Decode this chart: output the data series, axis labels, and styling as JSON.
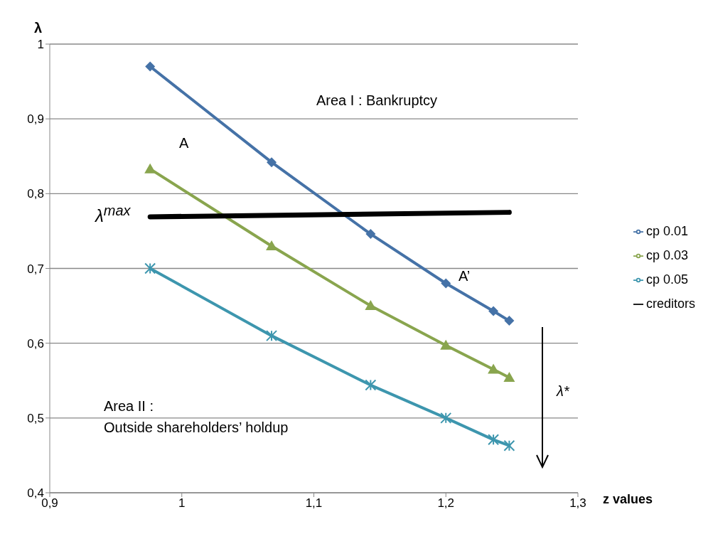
{
  "chart_data": {
    "type": "line",
    "xlabel": "z values",
    "ylabel": "λ",
    "xlim": [
      0.9,
      1.3
    ],
    "xticks": [
      {
        "value": 0.9,
        "label": "0,9"
      },
      {
        "value": 1,
        "label": "1"
      },
      {
        "value": 1.1,
        "label": "1,1"
      },
      {
        "value": 1.2,
        "label": "1,2"
      },
      {
        "value": 1.3,
        "label": "1,3"
      }
    ],
    "ylim": [
      0.4,
      1
    ],
    "yticks": [
      {
        "value": 0.4,
        "label": "0,4"
      },
      {
        "value": 0.5,
        "label": "0,5"
      },
      {
        "value": 0.6,
        "label": "0,6"
      },
      {
        "value": 0.7,
        "label": "0,7"
      },
      {
        "value": 0.8,
        "label": "0,8"
      },
      {
        "value": 0.9,
        "label": "0,9"
      },
      {
        "value": 1,
        "label": "1"
      }
    ],
    "grid": "y",
    "legend": "right",
    "line_style": "solid",
    "series": [
      {
        "name": "cp 0.01",
        "color": "#4572a7",
        "marker": "diamond",
        "x": [
          0.976,
          1.068,
          1.143,
          1.2,
          1.236,
          1.248
        ],
        "values": [
          0.97,
          0.842,
          0.746,
          0.68,
          0.643,
          0.63
        ]
      },
      {
        "name": "cp 0.03",
        "color": "#89a54e",
        "marker": "triangle",
        "x": [
          0.976,
          1.068,
          1.143,
          1.2,
          1.236,
          1.248
        ],
        "values": [
          0.833,
          0.73,
          0.65,
          0.597,
          0.565,
          0.554
        ]
      },
      {
        "name": "cp 0.05",
        "color": "#3d96ae",
        "marker": "cross",
        "x": [
          0.976,
          1.068,
          1.143,
          1.2,
          1.236,
          1.248
        ],
        "values": [
          0.7,
          0.61,
          0.544,
          0.5,
          0.471,
          0.463
        ]
      },
      {
        "name": "creditors",
        "color": "#000000",
        "marker": "none",
        "x": [
          0.976,
          1.248
        ],
        "values": [
          0.769,
          0.775
        ]
      }
    ],
    "annotations": [
      "Area I : Bankruptcy",
      "A",
      "λ$^{max}$",
      "A’",
      "λ*",
      "Area II :\nOutside shareholders’ holdup"
    ]
  }
}
